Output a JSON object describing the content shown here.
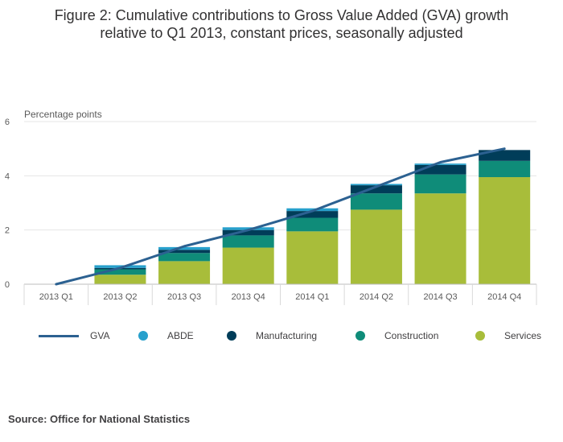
{
  "page": {
    "title_line1": "Figure 2: Cumulative contributions to Gross Value Added (GVA) growth",
    "title_line2": "relative to Q1 2013, constant prices, seasonally adjusted",
    "source": "Source: Office for National Statistics"
  },
  "chart_data": {
    "type": "bar",
    "stacked": true,
    "ylabel": "Percentage points",
    "xlabel": "",
    "ylim": [
      0,
      6
    ],
    "yticks": [
      0,
      2,
      4,
      6
    ],
    "grid": true,
    "legend_position": "bottom",
    "categories": [
      "2013 Q1",
      "2013 Q2",
      "2013 Q3",
      "2013 Q4",
      "2014 Q1",
      "2014 Q2",
      "2014 Q3",
      "2014 Q4"
    ],
    "series": [
      {
        "name": "Services",
        "kind": "bar",
        "color": "#a8bd3a",
        "values": [
          0,
          0.35,
          0.85,
          1.35,
          1.95,
          2.75,
          3.35,
          3.95
        ]
      },
      {
        "name": "Construction",
        "kind": "bar",
        "color": "#0f8c79",
        "values": [
          0,
          0.2,
          0.3,
          0.45,
          0.5,
          0.6,
          0.7,
          0.6
        ]
      },
      {
        "name": "Manufacturing",
        "kind": "bar",
        "color": "#003d59",
        "values": [
          0,
          0.05,
          0.12,
          0.2,
          0.25,
          0.3,
          0.35,
          0.4
        ]
      },
      {
        "name": "ABDE",
        "kind": "bar",
        "color": "#27a0cc",
        "values": [
          0,
          0.1,
          0.1,
          0.1,
          0.1,
          0.05,
          0.05,
          0.0
        ]
      },
      {
        "name": "GVA",
        "kind": "line",
        "color": "#2c6191",
        "values": [
          0,
          0.6,
          1.4,
          2.0,
          2.7,
          3.6,
          4.5,
          5.0
        ]
      }
    ]
  }
}
